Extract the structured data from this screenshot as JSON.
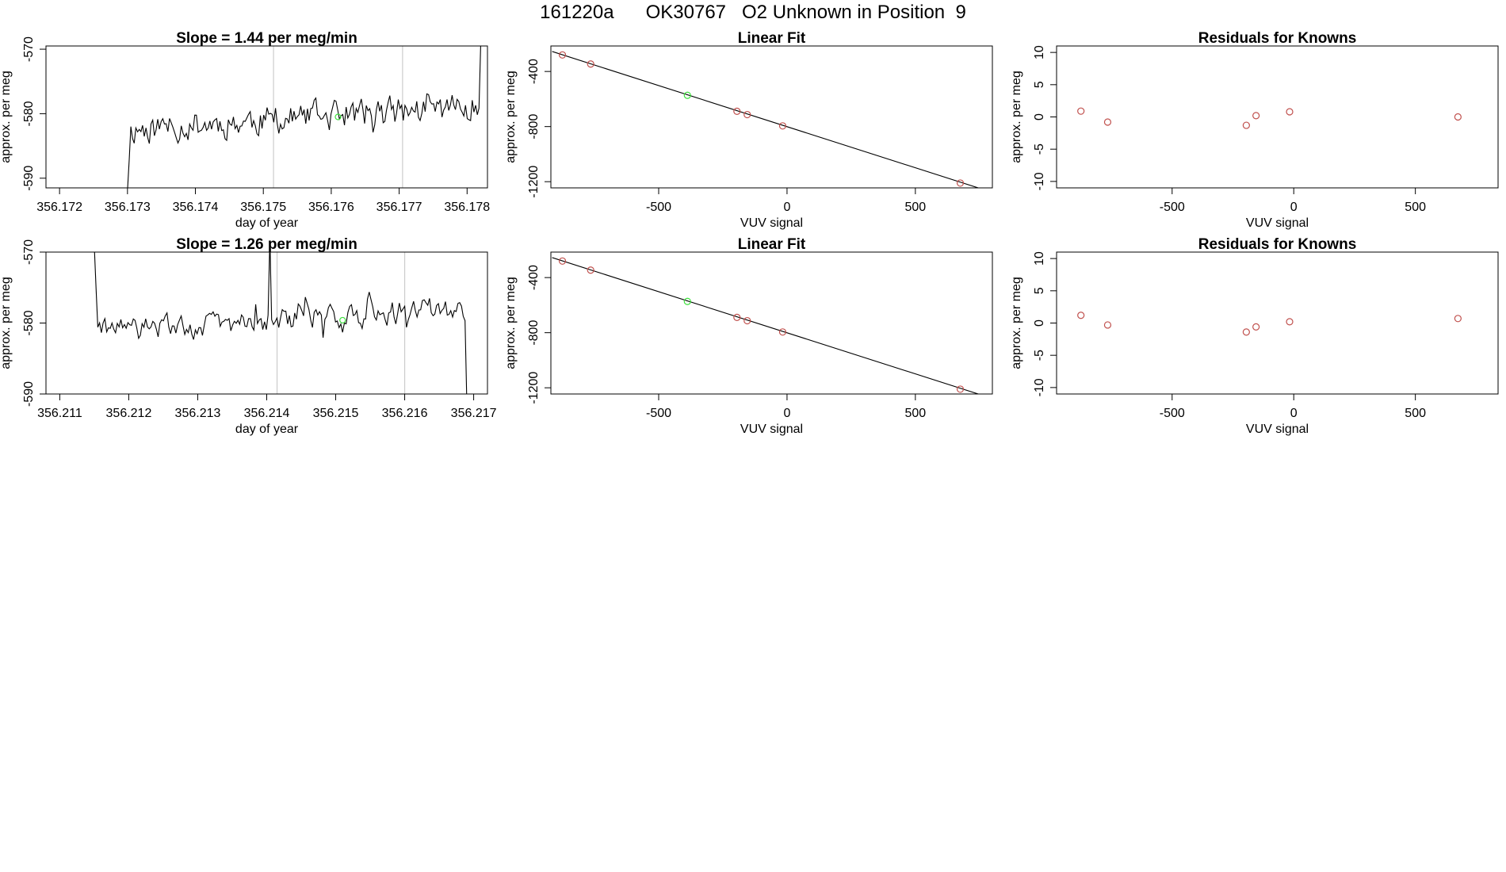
{
  "figure": {
    "title": "161220a      OK30767   O2 Unknown in Position  9"
  },
  "colors": {
    "known_point": "#c0504d",
    "unknown_point": "#3ee03e",
    "trace": "#000000",
    "vline": "#cccccc",
    "frame": "#000000"
  },
  "chart_data": [
    {
      "id": "row1-timeseries",
      "type": "line",
      "title": "Slope =  1.44  per meg/min",
      "xlabel": "day of year",
      "ylabel": "approx. per meg",
      "xlim": [
        356.1718,
        356.1783
      ],
      "ylim": [
        -591.5,
        -569.5
      ],
      "xticks": [
        356.172,
        356.173,
        356.174,
        356.175,
        356.176,
        356.177,
        356.178
      ],
      "xtick_labels": [
        "356.172",
        "356.173",
        "356.174",
        "356.175",
        "356.176",
        "356.177",
        "356.178"
      ],
      "yticks": [
        -570,
        -580,
        -590
      ],
      "ytick_labels": [
        "-570",
        "-580",
        "-590"
      ],
      "vlines": [
        356.17515,
        356.17705
      ],
      "trace": {
        "x_start": 356.173,
        "x_end": 356.1782,
        "seed": 11,
        "mean": -582.4,
        "mean_end": -578.8,
        "spread": 3.6,
        "start_from": -592,
        "end_to": -569.5
      },
      "highlight": {
        "x": 356.1761,
        "y": -580.5
      }
    },
    {
      "id": "row1-linearfit",
      "type": "scatter",
      "title": "Linear Fit",
      "xlabel": "VUV signal",
      "ylabel": "approx. per meg",
      "xlim": [
        -920,
        800
      ],
      "ylim": [
        -1245,
        -215
      ],
      "xticks": [
        -500,
        0,
        500
      ],
      "xtick_labels": [
        "-500",
        "0",
        "500"
      ],
      "yticks": [
        -400,
        -800,
        -1200
      ],
      "ytick_labels": [
        "-400",
        "-800",
        "-1200"
      ],
      "fit_line": {
        "x": [
          -915,
          770
        ],
        "y": [
          -255,
          -1260
        ]
      },
      "points": [
        {
          "x": -875,
          "y": -280,
          "kind": "known"
        },
        {
          "x": -765,
          "y": -346,
          "kind": "known"
        },
        {
          "x": -388,
          "y": -573,
          "kind": "unknown"
        },
        {
          "x": -195,
          "y": -689,
          "kind": "known"
        },
        {
          "x": -155,
          "y": -713,
          "kind": "known"
        },
        {
          "x": -17,
          "y": -795,
          "kind": "known"
        },
        {
          "x": 675,
          "y": -1210,
          "kind": "known"
        }
      ]
    },
    {
      "id": "row1-residuals",
      "type": "scatter",
      "title": "Residuals for Knowns",
      "xlabel": "VUV signal",
      "ylabel": "approx. per meg",
      "xlim": [
        -975,
        840
      ],
      "ylim": [
        -11,
        11
      ],
      "xticks": [
        -500,
        0,
        500
      ],
      "xtick_labels": [
        "-500",
        "0",
        "500"
      ],
      "yticks": [
        10,
        5,
        0,
        -5,
        -10
      ],
      "ytick_labels": [
        "10",
        "5",
        "0",
        "-5",
        "-10"
      ],
      "points": [
        {
          "x": -875,
          "y": 0.9
        },
        {
          "x": -765,
          "y": -0.8
        },
        {
          "x": -195,
          "y": -1.3
        },
        {
          "x": -155,
          "y": 0.2
        },
        {
          "x": -17,
          "y": 0.8
        },
        {
          "x": 675,
          "y": 0.0
        }
      ]
    },
    {
      "id": "row2-timeseries",
      "type": "line",
      "title": "Slope =  1.26  per meg/min",
      "xlabel": "day of year",
      "ylabel": "approx. per meg",
      "xlim": [
        356.2108,
        356.2172
      ],
      "ylim": [
        -590,
        -570
      ],
      "xticks": [
        356.211,
        356.212,
        356.213,
        356.214,
        356.215,
        356.216,
        356.217
      ],
      "xtick_labels": [
        "356.211",
        "356.212",
        "356.213",
        "356.214",
        "356.215",
        "356.216",
        "356.217"
      ],
      "yticks": [
        -570,
        -580,
        -590
      ],
      "ytick_labels": [
        "-570",
        "-580",
        "-590"
      ],
      "vlines": [
        356.21415,
        356.216
      ],
      "trace": {
        "x_start": 356.2115,
        "x_end": 356.2169,
        "seed": 29,
        "mean": -581.3,
        "mean_end": -577.8,
        "spread": 2.6,
        "start_from": -569,
        "end_to": -591
      },
      "spike": {
        "x": 356.21405,
        "y": -568
      },
      "highlight": {
        "x": 356.2151,
        "y": -579.6
      }
    },
    {
      "id": "row2-linearfit",
      "type": "scatter",
      "title": "Linear Fit",
      "xlabel": "VUV signal",
      "ylabel": "approx. per meg",
      "xlim": [
        -920,
        800
      ],
      "ylim": [
        -1245,
        -215
      ],
      "xticks": [
        -500,
        0,
        500
      ],
      "xtick_labels": [
        "-500",
        "0",
        "500"
      ],
      "yticks": [
        -400,
        -800,
        -1200
      ],
      "ytick_labels": [
        "-400",
        "-800",
        "-1200"
      ],
      "fit_line": {
        "x": [
          -915,
          770
        ],
        "y": [
          -255,
          -1260
        ]
      },
      "points": [
        {
          "x": -875,
          "y": -280,
          "kind": "known"
        },
        {
          "x": -765,
          "y": -346,
          "kind": "known"
        },
        {
          "x": -388,
          "y": -573,
          "kind": "unknown"
        },
        {
          "x": -195,
          "y": -689,
          "kind": "known"
        },
        {
          "x": -155,
          "y": -713,
          "kind": "known"
        },
        {
          "x": -17,
          "y": -795,
          "kind": "known"
        },
        {
          "x": 675,
          "y": -1210,
          "kind": "known"
        }
      ]
    },
    {
      "id": "row2-residuals",
      "type": "scatter",
      "title": "Residuals for Knowns",
      "xlabel": "VUV signal",
      "ylabel": "approx. per meg",
      "xlim": [
        -975,
        840
      ],
      "ylim": [
        -11,
        11
      ],
      "xticks": [
        -500,
        0,
        500
      ],
      "xtick_labels": [
        "-500",
        "0",
        "500"
      ],
      "yticks": [
        10,
        5,
        0,
        -5,
        -10
      ],
      "ytick_labels": [
        "10",
        "5",
        "0",
        "-5",
        "-10"
      ],
      "points": [
        {
          "x": -875,
          "y": 1.2
        },
        {
          "x": -765,
          "y": -0.3
        },
        {
          "x": -195,
          "y": -1.4
        },
        {
          "x": -155,
          "y": -0.6
        },
        {
          "x": -17,
          "y": 0.2
        },
        {
          "x": 675,
          "y": 0.7
        }
      ]
    }
  ]
}
